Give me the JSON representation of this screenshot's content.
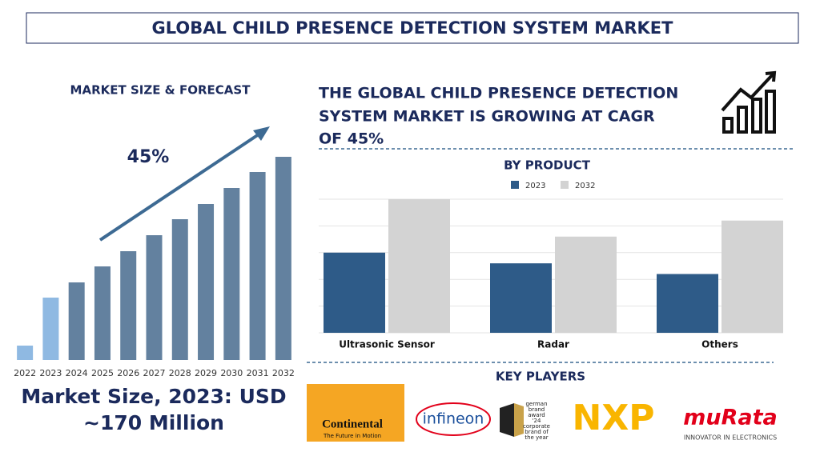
{
  "header": {
    "title": "GLOBAL CHILD PRESENCE DETECTION SYSTEM MARKET"
  },
  "headline": {
    "lines": [
      "THE GLOBAL CHILD PRESENCE DETECTION",
      "SYSTEM MARKET IS GROWING AT CAGR",
      "OF 45%"
    ]
  },
  "market_size": {
    "lines": [
      "Market Size, 2023: USD",
      "~170 Million"
    ]
  },
  "chart_data": [
    {
      "type": "bar",
      "title": "MARKET SIZE & FORECAST",
      "annotation": "45%",
      "categories": [
        "2022",
        "2023",
        "2024",
        "2025",
        "2026",
        "2027",
        "2028",
        "2029",
        "2030",
        "2031",
        "2032"
      ],
      "values": [
        18,
        78,
        97,
        117,
        136,
        156,
        176,
        195,
        215,
        235,
        254
      ],
      "colors": [
        "#8fb9e2",
        "#8fb9e2",
        "#63819f",
        "#63819f",
        "#63819f",
        "#63819f",
        "#63819f",
        "#63819f",
        "#63819f",
        "#63819f",
        "#63819f"
      ],
      "ylim": [
        0,
        260
      ]
    },
    {
      "type": "grouped-bar",
      "title": "BY PRODUCT",
      "categories": [
        "Ultrasonic Sensor",
        "Radar",
        "Others"
      ],
      "series": [
        {
          "name": "2023",
          "color": "#2e5b88",
          "values": [
            3,
            2.6,
            2.2
          ]
        },
        {
          "name": "2032",
          "color": "#d3d3d3",
          "values": [
            5,
            3.6,
            4.2
          ]
        }
      ],
      "ylim": [
        0,
        5
      ],
      "yticks": [
        0,
        1,
        2,
        3,
        4,
        5
      ],
      "grid": true
    }
  ],
  "key_players": {
    "title": "KEY PLAYERS",
    "continental": {
      "name": "Continental",
      "tagline": "The Future in Motion"
    },
    "infineon": "infineon",
    "award": [
      "german",
      "brand",
      "award",
      "'24",
      "corporate",
      "brand of",
      "the year"
    ],
    "nxp": "NXP",
    "murata": {
      "name": "muRata",
      "tagline": "INNOVATOR IN ELECTRONICS"
    }
  }
}
